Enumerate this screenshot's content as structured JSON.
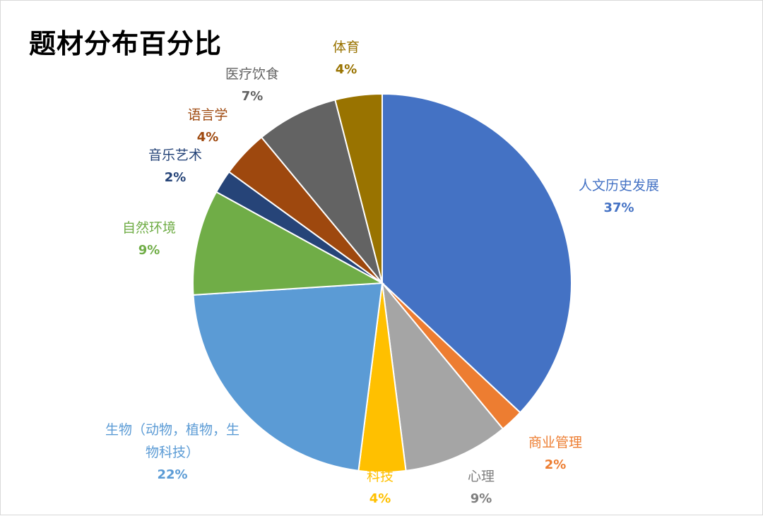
{
  "chart_data": {
    "type": "pie",
    "title": "题材分布百分比",
    "slices": [
      {
        "name": "人文历史发展",
        "value": 37,
        "label": "37%",
        "color": "#4472C4",
        "label_color": "#4472C4"
      },
      {
        "name": "商业管理",
        "value": 2,
        "label": "2%",
        "color": "#ED7D31",
        "label_color": "#ED7D31"
      },
      {
        "name": "心理",
        "value": 9,
        "label": "9%",
        "color": "#A5A5A5",
        "label_color": "#7F7F7F"
      },
      {
        "name": "科技",
        "value": 4,
        "label": "4%",
        "color": "#FFC000",
        "label_color": "#FFC000"
      },
      {
        "name": "生物（动物，植物，生物科技）",
        "value": 22,
        "label": "22%",
        "color": "#5B9BD5",
        "label_color": "#5B9BD5"
      },
      {
        "name": "自然环境",
        "value": 9,
        "label": "9%",
        "color": "#70AD47",
        "label_color": "#70AD47"
      },
      {
        "name": "音乐艺术",
        "value": 2,
        "label": "2%",
        "color": "#264478",
        "label_color": "#264478"
      },
      {
        "name": "语言学",
        "value": 4,
        "label": "4%",
        "color": "#9E480E",
        "label_color": "#9E480E"
      },
      {
        "name": "医疗饮食",
        "value": 7,
        "label": "7%",
        "color": "#636363",
        "label_color": "#636363"
      },
      {
        "name": "体育",
        "value": 4,
        "label": "4%",
        "color": "#997300",
        "label_color": "#997300"
      }
    ]
  }
}
